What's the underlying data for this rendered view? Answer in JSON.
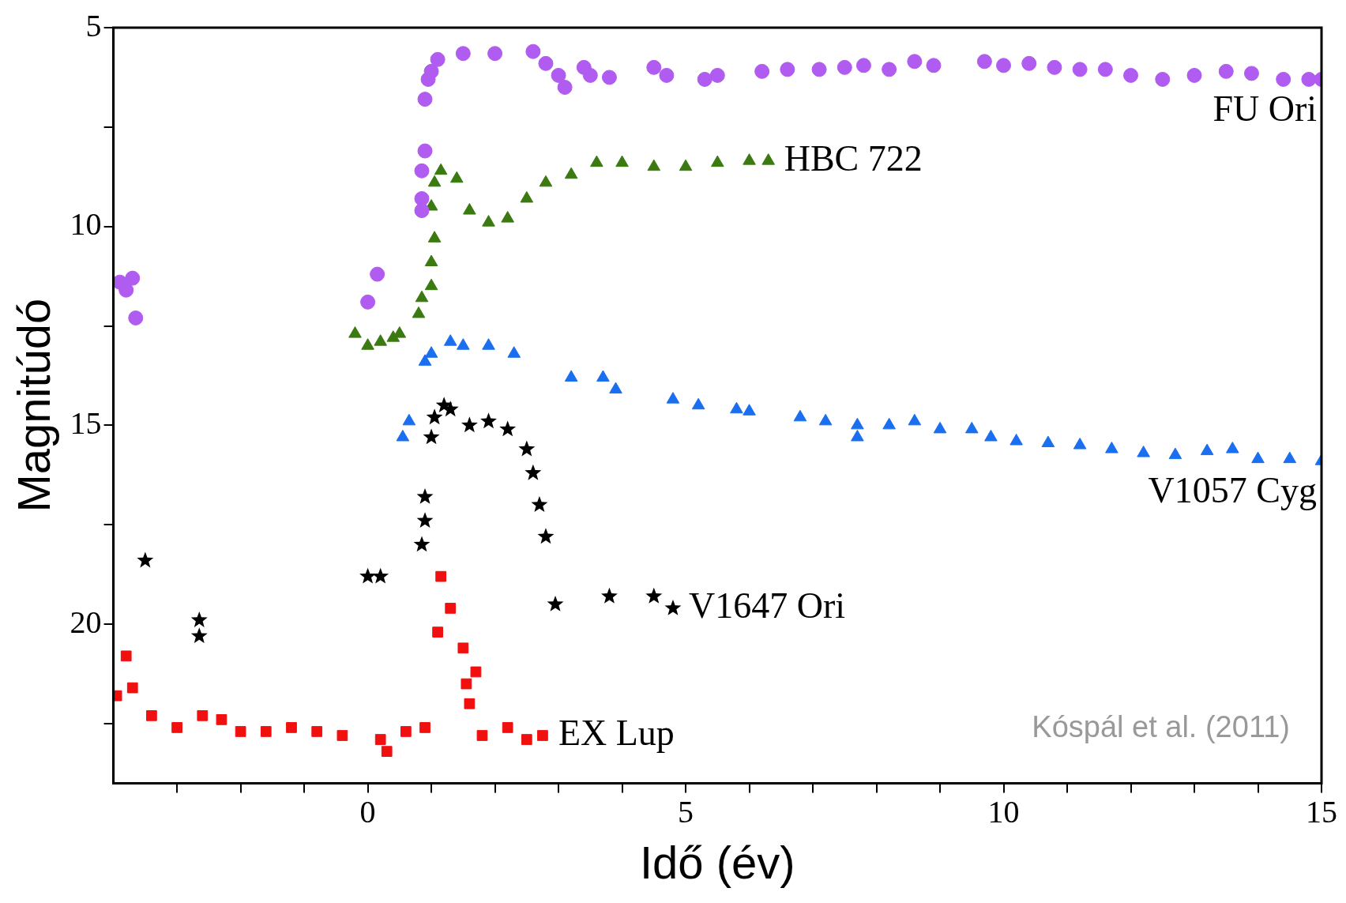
{
  "chart_data": {
    "type": "scatter",
    "xlabel": "Idő (év)",
    "ylabel": "Magnitúdó",
    "xlim": [
      -4,
      15
    ],
    "ylim": [
      24,
      5
    ],
    "xticks": [
      {
        "value": -3,
        "label": null
      },
      {
        "value": -2,
        "label": null
      },
      {
        "value": -1,
        "label": null
      },
      0,
      {
        "value": 1,
        "label": null
      },
      {
        "value": 2,
        "label": null
      },
      {
        "value": 3,
        "label": null
      },
      {
        "value": 4,
        "label": null
      },
      5,
      {
        "value": 6,
        "label": null
      },
      {
        "value": 7,
        "label": null
      },
      {
        "value": 8,
        "label": null
      },
      {
        "value": 9,
        "label": null
      },
      10,
      {
        "value": 11,
        "label": null
      },
      {
        "value": 12,
        "label": null
      },
      {
        "value": 13,
        "label": null
      },
      {
        "value": 14,
        "label": null
      },
      15
    ],
    "yticks": [
      5,
      {
        "value": 7.5,
        "label": null
      },
      10,
      {
        "value": 12.5,
        "label": null
      },
      15,
      {
        "value": 17.5,
        "label": null
      },
      20,
      {
        "value": 22.5,
        "label": null
      }
    ],
    "grid": false,
    "legend": false,
    "annotations": [
      "Kóspál et al. (2011)"
    ],
    "series": [
      {
        "name": "FU Ori",
        "color": "#b05cf0",
        "marker": "circle",
        "x": [
          -3.9,
          -3.7,
          -3.8,
          -3.65,
          0,
          0.15,
          0.85,
          0.85,
          0.85,
          0.9,
          0.9,
          0.95,
          1.0,
          1.1,
          1.5,
          2.0,
          2.6,
          2.8,
          3.0,
          3.1,
          3.4,
          3.5,
          3.8,
          4.5,
          4.7,
          5.3,
          5.5,
          6.2,
          6.6,
          7.1,
          7.5,
          7.8,
          8.2,
          8.6,
          8.9,
          9.7,
          10.0,
          10.4,
          10.8,
          11.2,
          11.6,
          12.0,
          12.5,
          13.0,
          13.5,
          13.9,
          14.4,
          14.8,
          15.0
        ],
        "values": [
          11.4,
          11.3,
          11.6,
          12.3,
          11.9,
          11.2,
          9.6,
          9.3,
          8.6,
          8.1,
          6.8,
          6.3,
          6.1,
          5.8,
          5.65,
          5.65,
          5.6,
          5.9,
          6.2,
          6.5,
          6.0,
          6.2,
          6.25,
          6.0,
          6.2,
          6.3,
          6.2,
          6.1,
          6.05,
          6.05,
          6.0,
          5.95,
          6.05,
          5.85,
          5.95,
          5.85,
          5.95,
          5.9,
          6.0,
          6.05,
          6.05,
          6.2,
          6.3,
          6.2,
          6.1,
          6.15,
          6.3,
          6.3,
          6.3
        ]
      },
      {
        "name": "HBC 722",
        "color": "#3a7a10",
        "marker": "triangle",
        "x": [
          -0.2,
          0,
          0.2,
          0.4,
          0.5,
          0.8,
          0.85,
          1.0,
          1.0,
          1.05,
          1.0,
          1.05,
          1.15,
          1.4,
          1.6,
          1.9,
          2.2,
          2.5,
          2.8,
          3.2,
          3.6,
          4.0,
          4.5,
          5.0,
          5.5,
          6.0,
          6.3
        ],
        "values": [
          12.7,
          13.0,
          12.9,
          12.8,
          12.7,
          12.2,
          11.8,
          11.5,
          10.9,
          10.3,
          9.5,
          8.9,
          8.6,
          8.8,
          9.6,
          9.9,
          9.8,
          9.3,
          8.9,
          8.7,
          8.4,
          8.4,
          8.5,
          8.5,
          8.4,
          8.35,
          8.35
        ]
      },
      {
        "name": "V1057 Cyg",
        "color": "#1a6ff0",
        "marker": "triangle",
        "x": [
          0.55,
          0.65,
          0.9,
          1.0,
          1.3,
          1.5,
          1.9,
          2.3,
          3.2,
          3.7,
          3.9,
          4.8,
          5.2,
          5.8,
          6.0,
          6.8,
          7.2,
          7.7,
          7.7,
          8.2,
          8.6,
          9.0,
          9.5,
          9.8,
          10.2,
          10.7,
          11.2,
          11.7,
          12.2,
          12.7,
          13.2,
          13.6,
          14.0,
          14.5,
          15.0
        ],
        "values": [
          15.3,
          14.9,
          13.4,
          13.2,
          12.9,
          13.0,
          13.0,
          13.2,
          13.8,
          13.8,
          14.1,
          14.35,
          14.5,
          14.6,
          14.65,
          14.8,
          14.9,
          15.0,
          15.3,
          15.0,
          14.9,
          15.1,
          15.1,
          15.3,
          15.4,
          15.45,
          15.5,
          15.6,
          15.7,
          15.75,
          15.65,
          15.6,
          15.85,
          15.85,
          15.9
        ]
      },
      {
        "name": "V1647 Ori",
        "color": "#000000",
        "marker": "star",
        "x": [
          -3.5,
          -2.65,
          -2.65,
          0,
          0.2,
          0.85,
          0.9,
          0.9,
          1.0,
          1.05,
          1.2,
          1.3,
          1.6,
          1.9,
          2.2,
          2.5,
          2.6,
          2.7,
          2.8,
          2.95,
          3.8,
          4.5,
          4.8
        ],
        "values": [
          18.4,
          19.9,
          20.3,
          18.8,
          18.8,
          18.0,
          17.4,
          16.8,
          15.3,
          14.8,
          14.5,
          14.6,
          15.0,
          14.9,
          15.1,
          15.6,
          16.2,
          17.0,
          17.8,
          19.5,
          19.3,
          19.3,
          19.6
        ]
      },
      {
        "name": "EX Lup",
        "color": "#f01010",
        "marker": "square",
        "x": [
          -3.95,
          -3.8,
          -3.7,
          -3.4,
          -3.0,
          -2.6,
          -2.3,
          -2.0,
          -1.6,
          -1.2,
          -0.8,
          -0.4,
          0.2,
          0.3,
          0.6,
          0.9,
          1.15,
          1.3,
          1.1,
          1.5,
          1.7,
          1.55,
          1.6,
          1.8,
          2.2,
          2.5,
          2.75
        ],
        "values": [
          21.8,
          20.8,
          21.6,
          22.3,
          22.6,
          22.3,
          22.4,
          22.7,
          22.7,
          22.6,
          22.7,
          22.8,
          22.9,
          23.2,
          22.7,
          22.6,
          18.8,
          19.6,
          20.2,
          20.6,
          21.2,
          21.5,
          22.0,
          22.8,
          22.6,
          22.9,
          22.8
        ]
      }
    ]
  }
}
